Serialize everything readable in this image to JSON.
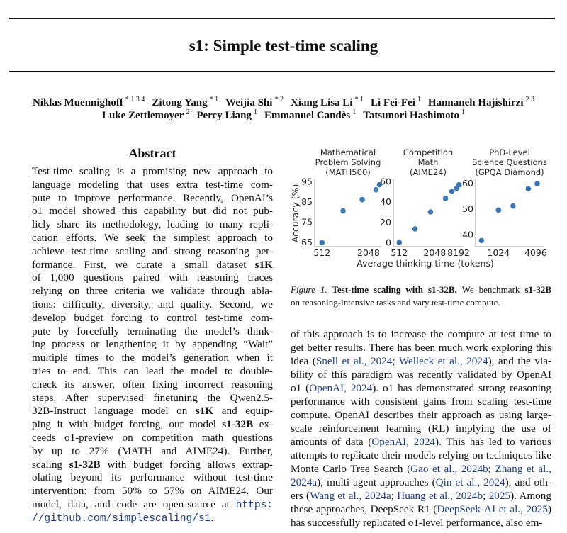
{
  "title": "s1: Simple test-time scaling",
  "authors": {
    "line1": [
      {
        "name": "Niklas Muennighoff",
        "sup": "* 1 3 4"
      },
      {
        "name": "Zitong Yang",
        "sup": "* 1"
      },
      {
        "name": "Weijia Shi",
        "sup": "* 2"
      },
      {
        "name": "Xiang Lisa Li",
        "sup": "* 1"
      },
      {
        "name": "Li Fei-Fei",
        "sup": "1"
      },
      {
        "name": "Hannaneh Hajishirzi",
        "sup": "2 3"
      }
    ],
    "line2": [
      {
        "name": "Luke Zettlemoyer",
        "sup": "2"
      },
      {
        "name": "Percy Liang",
        "sup": "1"
      },
      {
        "name": "Emmanuel Candès",
        "sup": "1"
      },
      {
        "name": "Tatsunori Hashimoto",
        "sup": "1"
      }
    ]
  },
  "abstract": {
    "heading": "Abstract",
    "lines": [
      [
        {
          "t": "Test-time scaling is a promising new approach to",
          "s": ""
        }
      ],
      [
        {
          "t": "language modeling that uses extra test-time com-",
          "s": ""
        }
      ],
      [
        {
          "t": "pute to improve performance. Recently, OpenAI’s",
          "s": ""
        }
      ],
      [
        {
          "t": "o1 model showed this capability but did not pub-",
          "s": ""
        }
      ],
      [
        {
          "t": "licly share its methodology, leading to many repli-",
          "s": ""
        }
      ],
      [
        {
          "t": "cation efforts. We seek the simplest approach to",
          "s": ""
        }
      ],
      [
        {
          "t": "achieve test-time scaling and strong reasoning per-",
          "s": ""
        }
      ],
      [
        {
          "t": "formance. First, we curate a small dataset ",
          "s": ""
        },
        {
          "t": "s1K",
          "s": "b"
        }
      ],
      [
        {
          "t": "of 1,000 questions paired with reasoning traces",
          "s": ""
        }
      ],
      [
        {
          "t": "relying on three criteria we validate through abla-",
          "s": ""
        }
      ],
      [
        {
          "t": "tions: difficulty, diversity, and quality. Second, we",
          "s": ""
        }
      ],
      [
        {
          "t": "develop budget forcing to control test-time com-",
          "s": ""
        }
      ],
      [
        {
          "t": "pute by forcefully terminating the model’s think-",
          "s": ""
        }
      ],
      [
        {
          "t": "ing process or lengthening it by appending “Wait”",
          "s": ""
        }
      ],
      [
        {
          "t": "multiple times to the model’s generation when it",
          "s": ""
        }
      ],
      [
        {
          "t": "tries to end. This can lead the model to double-",
          "s": ""
        }
      ],
      [
        {
          "t": "check its answer, often fixing incorrect reasoning",
          "s": ""
        }
      ],
      [
        {
          "t": "steps. After supervised finetuning the Qwen2.5-",
          "s": ""
        }
      ],
      [
        {
          "t": "32B-Instruct language model on ",
          "s": ""
        },
        {
          "t": "s1K",
          "s": "b"
        },
        {
          "t": " and equip-",
          "s": ""
        }
      ],
      [
        {
          "t": "ping it with budget forcing, our model ",
          "s": ""
        },
        {
          "t": "s1-32B",
          "s": "b"
        },
        {
          "t": " ex-",
          "s": ""
        }
      ],
      [
        {
          "t": "ceeds o1-preview on competition math questions",
          "s": ""
        }
      ],
      [
        {
          "t": "by up to 27% (MATH and AIME24). Further,",
          "s": ""
        }
      ],
      [
        {
          "t": "scaling ",
          "s": ""
        },
        {
          "t": "s1-32B",
          "s": "b"
        },
        {
          "t": " with budget forcing allows extrap-",
          "s": ""
        }
      ],
      [
        {
          "t": "olating beyond its performance without test-time",
          "s": ""
        }
      ],
      [
        {
          "t": "intervention: from 50% to 57% on AIME24. Our",
          "s": ""
        }
      ],
      [
        {
          "t": "model, data, and code are open-source at ",
          "s": ""
        },
        {
          "t": "https:",
          "s": "m"
        }
      ],
      [
        {
          "t": "//github.com/simplescaling/s1",
          "s": "m"
        },
        {
          "t": ".",
          "s": ""
        }
      ]
    ]
  },
  "figure": {
    "caption": [
      [
        {
          "t": "Figure 1.",
          "s": "i"
        },
        {
          "t": " Test-time scaling with s1-32B.",
          "s": "b"
        },
        {
          "t": " We benchmark ",
          "s": ""
        },
        {
          "t": "s1-32B",
          "s": "b"
        }
      ],
      [
        {
          "t": "on reasoning-intensive tasks and vary test-time compute.",
          "s": ""
        }
      ]
    ]
  },
  "body": {
    "lines": [
      [
        {
          "t": "of this approach is to increase the compute at test time to",
          "s": ""
        }
      ],
      [
        {
          "t": "get better results. There has been much work exploring this",
          "s": ""
        }
      ],
      [
        {
          "t": "idea (",
          "s": ""
        },
        {
          "t": "Snell et al., 2024",
          "s": "l"
        },
        {
          "t": "; ",
          "s": ""
        },
        {
          "t": "Welleck et al., 2024",
          "s": "l"
        },
        {
          "t": "), and the via-",
          "s": ""
        }
      ],
      [
        {
          "t": "bility of this paradigm was recently validated by OpenAI",
          "s": ""
        }
      ],
      [
        {
          "t": "o1 (",
          "s": ""
        },
        {
          "t": "OpenAI, 2024",
          "s": "l"
        },
        {
          "t": "). o1 has demonstrated strong reasoning",
          "s": ""
        }
      ],
      [
        {
          "t": "performance with consistent gains from scaling test-time",
          "s": ""
        }
      ],
      [
        {
          "t": "compute. OpenAI describes their approach as using large-",
          "s": ""
        }
      ],
      [
        {
          "t": "scale reinforcement learning (RL) implying the use of sizable",
          "s": ""
        }
      ],
      [
        {
          "t": "amounts of data (",
          "s": ""
        },
        {
          "t": "OpenAI, 2024",
          "s": "l"
        },
        {
          "t": "). This has led to various",
          "s": ""
        }
      ],
      [
        {
          "t": "attempts to replicate their models relying on techniques like",
          "s": ""
        }
      ],
      [
        {
          "t": "Monte Carlo Tree Search (",
          "s": ""
        },
        {
          "t": "Gao et al., 2024b",
          "s": "l"
        },
        {
          "t": "; ",
          "s": ""
        },
        {
          "t": "Zhang et al.,",
          "s": "l"
        }
      ],
      [
        {
          "t": "2024a",
          "s": "l"
        },
        {
          "t": "), multi-agent approaches (",
          "s": ""
        },
        {
          "t": "Qin et al., 2024",
          "s": "l"
        },
        {
          "t": "), and oth-",
          "s": ""
        }
      ],
      [
        {
          "t": "ers (",
          "s": ""
        },
        {
          "t": "Wang et al., 2024a",
          "s": "l"
        },
        {
          "t": "; ",
          "s": ""
        },
        {
          "t": "Huang et al., 2024b",
          "s": "l"
        },
        {
          "t": "; ",
          "s": ""
        },
        {
          "t": "2025",
          "s": "l"
        },
        {
          "t": "). Among",
          "s": ""
        }
      ],
      [
        {
          "t": "these approaches, DeepSeek R1 (",
          "s": ""
        },
        {
          "t": "DeepSeek-AI et al., 2025",
          "s": "l"
        },
        {
          "t": ")",
          "s": ""
        }
      ],
      [
        {
          "t": "has successfully replicated o1-level performance, also em-",
          "s": ""
        }
      ]
    ]
  },
  "colors": {
    "link": "#1c3b8f",
    "points": "#3b76b4"
  },
  "chart_data": {
    "type": "scatter",
    "ylabel": "Accuracy (%)",
    "xlabel": "Average thinking time (tokens)",
    "xscale": "log2",
    "grid": false,
    "panels": [
      {
        "title": [
          "Mathematical",
          "Problem Solving",
          "(MATH500)"
        ],
        "x": [
          512,
          960,
          1700,
          2560,
          2840
        ],
        "y": [
          64.8,
          80.5,
          86.0,
          90.9,
          93.4
        ],
        "xticks": [
          "512",
          "2048"
        ],
        "yticks": [
          "65",
          "75",
          "85",
          "95"
        ]
      },
      {
        "title": [
          "Competition",
          "Math",
          "(AIME24)"
        ],
        "x": [
          512,
          950,
          1740,
          3130,
          4010,
          4840,
          5300
        ],
        "y": [
          0,
          13.3,
          30.0,
          43.3,
          50.0,
          53.3,
          56.7
        ],
        "xticks": [
          "512",
          "2048",
          "8192"
        ],
        "yticks": [
          "0",
          "20",
          "40",
          "60"
        ]
      },
      {
        "title": [
          "PhD-Level",
          "Science Questions",
          "(GPQA Diamond)"
        ],
        "x": [
          545,
          1024,
          1760,
          3100,
          4330
        ],
        "y": [
          37.7,
          49.5,
          51.1,
          57.8,
          59.8
        ],
        "xticks": [
          "1024",
          "4096"
        ],
        "yticks": [
          "40",
          "50",
          "60"
        ]
      }
    ]
  }
}
